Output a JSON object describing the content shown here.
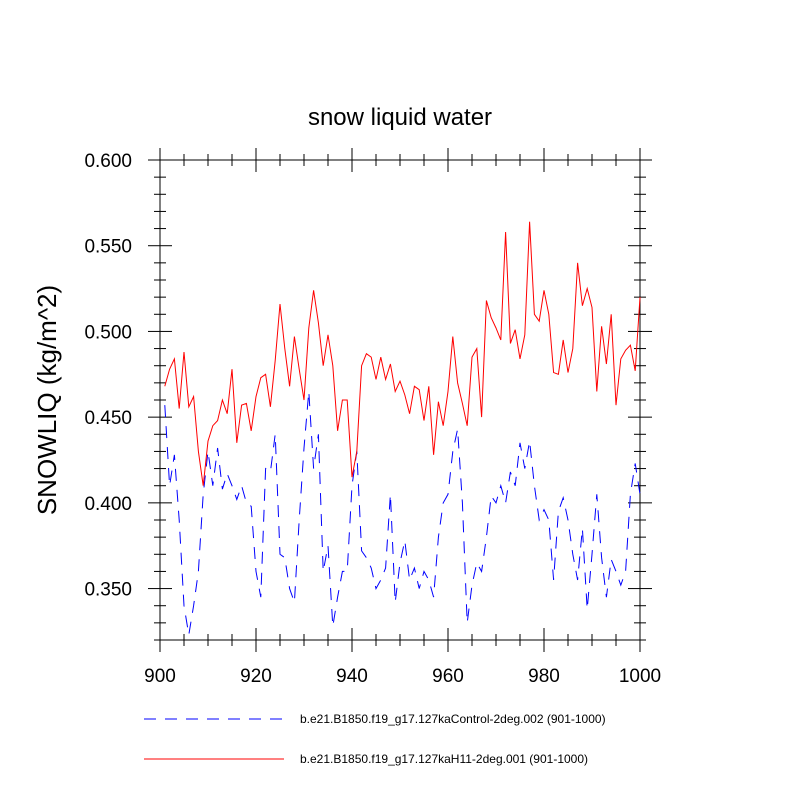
{
  "chart_data": {
    "type": "line",
    "title": "snow liquid water",
    "xlabel": "",
    "ylabel": "SNOWLIQ  (kg/m^2)",
    "xlim": [
      900,
      1000
    ],
    "ylim": [
      0.32,
      0.6
    ],
    "x_ticks": [
      900,
      920,
      940,
      960,
      980,
      1000
    ],
    "x_tick_labels": [
      "900",
      "920",
      "940",
      "960",
      "980",
      "1000"
    ],
    "y_ticks": [
      0.35,
      0.4,
      0.45,
      0.5,
      0.55,
      0.6
    ],
    "y_tick_labels": [
      "0.350",
      "0.400",
      "0.450",
      "0.500",
      "0.550",
      "0.600"
    ],
    "x_start": 901,
    "x_step": 1,
    "series": [
      {
        "name": "b.e21.B1850.f19_g17.127kaControl-2deg.002 (901-1000)",
        "color": "#0000ff",
        "style": "dashed",
        "values": [
          0.457,
          0.41,
          0.428,
          0.39,
          0.34,
          0.323,
          0.34,
          0.36,
          0.405,
          0.43,
          0.41,
          0.432,
          0.408,
          0.417,
          0.41,
          0.402,
          0.41,
          0.4,
          0.398,
          0.36,
          0.345,
          0.42,
          0.418,
          0.44,
          0.37,
          0.368,
          0.35,
          0.342,
          0.39,
          0.432,
          0.465,
          0.42,
          0.44,
          0.36,
          0.375,
          0.328,
          0.345,
          0.36,
          0.36,
          0.41,
          0.43,
          0.372,
          0.368,
          0.362,
          0.35,
          0.355,
          0.362,
          0.405,
          0.342,
          0.365,
          0.378,
          0.355,
          0.362,
          0.35,
          0.36,
          0.355,
          0.345,
          0.38,
          0.4,
          0.405,
          0.43,
          0.443,
          0.4,
          0.33,
          0.352,
          0.365,
          0.36,
          0.38,
          0.404,
          0.4,
          0.41,
          0.4,
          0.418,
          0.41,
          0.435,
          0.42,
          0.436,
          0.41,
          0.39,
          0.396,
          0.39,
          0.355,
          0.395,
          0.403,
          0.39,
          0.37,
          0.355,
          0.385,
          0.338,
          0.37,
          0.405,
          0.368,
          0.345,
          0.367,
          0.36,
          0.352,
          0.36,
          0.405,
          0.423,
          0.405
        ]
      },
      {
        "name": "b.e21.B1850.f19_g17.127kaH11-2deg.001 (901-1000)",
        "color": "#ff0000",
        "style": "solid",
        "values": [
          0.468,
          0.478,
          0.484,
          0.455,
          0.488,
          0.456,
          0.462,
          0.43,
          0.41,
          0.436,
          0.445,
          0.448,
          0.46,
          0.452,
          0.478,
          0.435,
          0.457,
          0.458,
          0.442,
          0.462,
          0.473,
          0.475,
          0.456,
          0.483,
          0.516,
          0.49,
          0.468,
          0.497,
          0.478,
          0.46,
          0.502,
          0.524,
          0.505,
          0.48,
          0.498,
          0.48,
          0.442,
          0.46,
          0.46,
          0.415,
          0.43,
          0.48,
          0.487,
          0.485,
          0.472,
          0.485,
          0.472,
          0.481,
          0.465,
          0.471,
          0.463,
          0.452,
          0.468,
          0.466,
          0.448,
          0.468,
          0.428,
          0.459,
          0.445,
          0.465,
          0.497,
          0.47,
          0.458,
          0.445,
          0.485,
          0.49,
          0.45,
          0.518,
          0.508,
          0.502,
          0.495,
          0.558,
          0.493,
          0.501,
          0.484,
          0.498,
          0.564,
          0.51,
          0.506,
          0.524,
          0.51,
          0.476,
          0.475,
          0.495,
          0.476,
          0.49,
          0.54,
          0.515,
          0.525,
          0.514,
          0.465,
          0.503,
          0.481,
          0.51,
          0.457,
          0.484,
          0.489,
          0.492,
          0.477,
          0.52
        ]
      }
    ],
    "legend": [
      "b.e21.B1850.f19_g17.127kaControl-2deg.002 (901-1000)",
      "b.e21.B1850.f19_g17.127kaH11-2deg.001 (901-1000)"
    ],
    "legend_position": "bottom",
    "grid": false
  }
}
